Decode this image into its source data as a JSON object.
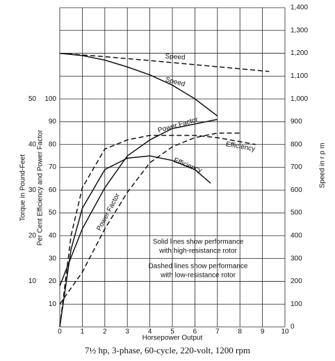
{
  "chart_data": {
    "type": "line",
    "caption": "7½ hp, 3-phase, 60-cycle, 220-volt, 1200 rpm",
    "x_label": "Horsepower Output",
    "y_label": "Per Cent Efficiency and Power Factor",
    "y2_label": "Speed in r p m",
    "y3_label": "Torque in Pound-Feet",
    "annotations": [
      "Solid lines show performance",
      "with high-resistance rotor",
      "Dashed lines show performance",
      "with low-resistance rotor"
    ],
    "xlim": [
      0,
      10
    ],
    "xticks": [
      0,
      1,
      2,
      3,
      4,
      5,
      6,
      7,
      8,
      9,
      10
    ],
    "ylim": [
      0,
      140
    ],
    "yticks": [
      10,
      20,
      30,
      40,
      50,
      60,
      70,
      80,
      90,
      100
    ],
    "y2lim": [
      0,
      1400
    ],
    "y2ticks": [
      0,
      100,
      200,
      300,
      400,
      500,
      600,
      700,
      800,
      900,
      {
        "value": 1000,
        "label": "1,000"
      },
      {
        "value": 1100,
        "label": "1,100"
      },
      {
        "value": 1200,
        "label": "1,200"
      },
      {
        "value": 1300,
        "label": "1,300"
      },
      {
        "value": 1400,
        "label": "1,400"
      }
    ],
    "y3lim": [
      0,
      70
    ],
    "y3ticks": [
      10,
      20,
      30,
      40,
      50
    ],
    "grid": true,
    "series": [
      {
        "name": "Speed",
        "color": "#111111",
        "dashed": false,
        "axis": "y2",
        "x": [
          0,
          1,
          2,
          3,
          4,
          5,
          6,
          7
        ],
        "values": [
          1200,
          1190,
          1170,
          1140,
          1105,
          1060,
          1000,
          925
        ]
      },
      {
        "name": "Speed",
        "color": "#111111",
        "dashed": true,
        "axis": "y2",
        "x": [
          0,
          2,
          4,
          6,
          8,
          9.3
        ],
        "values": [
          1200,
          1185,
          1168,
          1150,
          1132,
          1120
        ]
      },
      {
        "name": "Power Factor",
        "color": "#111111",
        "dashed": false,
        "axis": "y",
        "x": [
          0,
          1,
          2,
          3,
          4,
          5,
          6,
          7
        ],
        "values": [
          18,
          43,
          61,
          75,
          82,
          87,
          89,
          91
        ]
      },
      {
        "name": "Power Factor",
        "color": "#111111",
        "dashed": true,
        "axis": "y",
        "x": [
          0,
          1,
          2,
          3,
          4,
          5,
          6,
          7,
          8
        ],
        "values": [
          10,
          24,
          43,
          59,
          72,
          79,
          83,
          85,
          85
        ]
      },
      {
        "name": "Efficiency",
        "color": "#111111",
        "dashed": false,
        "axis": "y",
        "x": [
          0,
          0.5,
          1,
          2,
          3,
          4,
          5,
          6,
          6.7
        ],
        "values": [
          0,
          34,
          52,
          69,
          74,
          75,
          73,
          69,
          63
        ]
      },
      {
        "name": "Efficiency",
        "color": "#111111",
        "dashed": true,
        "axis": "y",
        "x": [
          0,
          0.5,
          1,
          2,
          3,
          4,
          5,
          6,
          7,
          8.7
        ],
        "values": [
          0,
          40,
          61,
          78,
          82,
          84,
          84,
          84,
          83,
          80
        ]
      }
    ]
  }
}
